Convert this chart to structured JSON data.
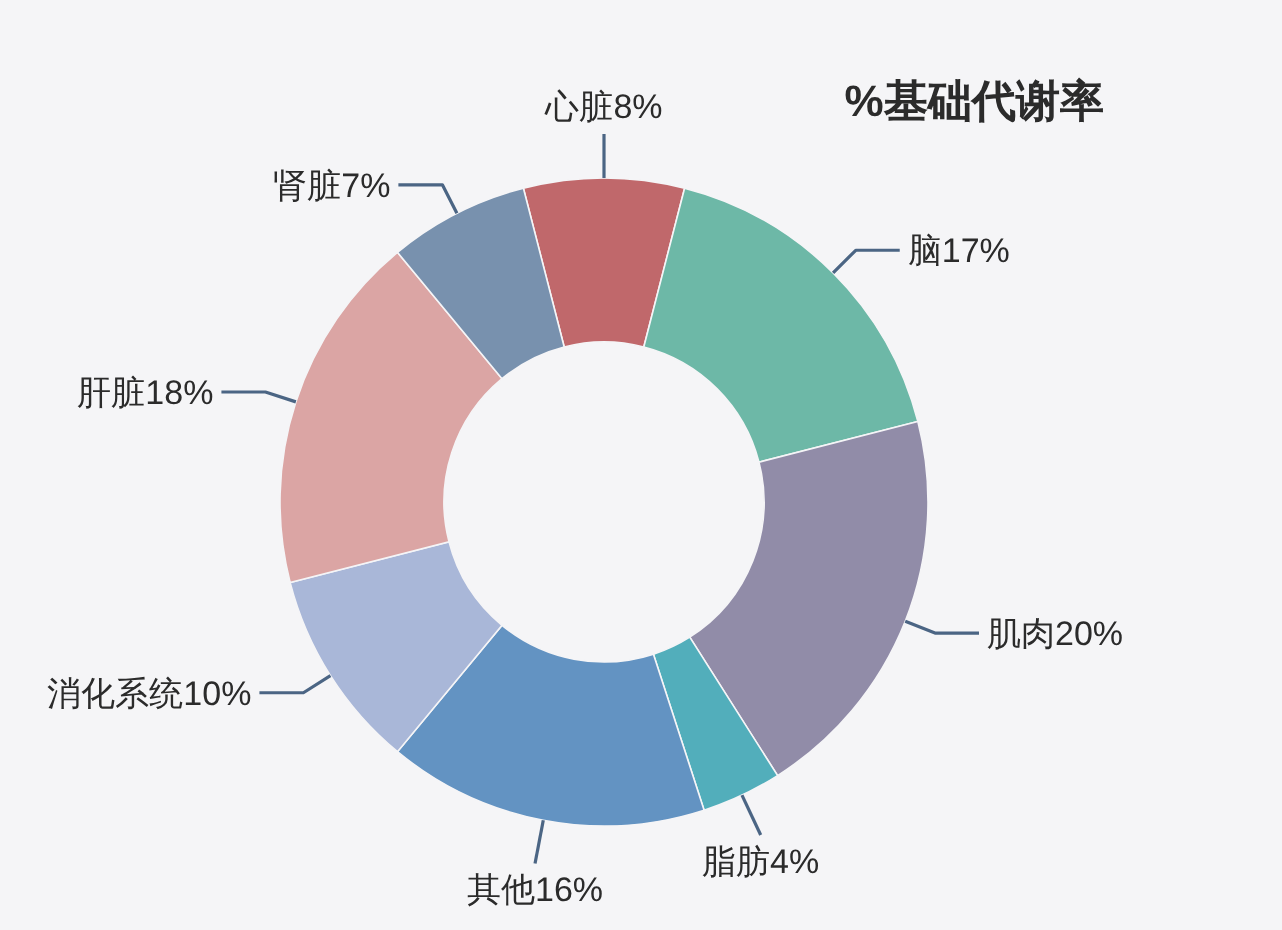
{
  "chart_data": {
    "type": "donut",
    "title": "%基础代谢率",
    "categories": [
      "心脏",
      "脑",
      "肌肉",
      "脂肪",
      "其他",
      "消化系统",
      "肝脏",
      "肾脏"
    ],
    "values": [
      8,
      17,
      20,
      4,
      16,
      10,
      18,
      7
    ],
    "value_labels": [
      "8%",
      "17%",
      "20%",
      "4%",
      "16%",
      "10%",
      "18%",
      "7%"
    ],
    "colors": [
      "#c0686b",
      "#6db8a7",
      "#918ca8",
      "#52aebb",
      "#6393c2",
      "#a9b7d8",
      "#dba5a4",
      "#7891ae"
    ]
  }
}
